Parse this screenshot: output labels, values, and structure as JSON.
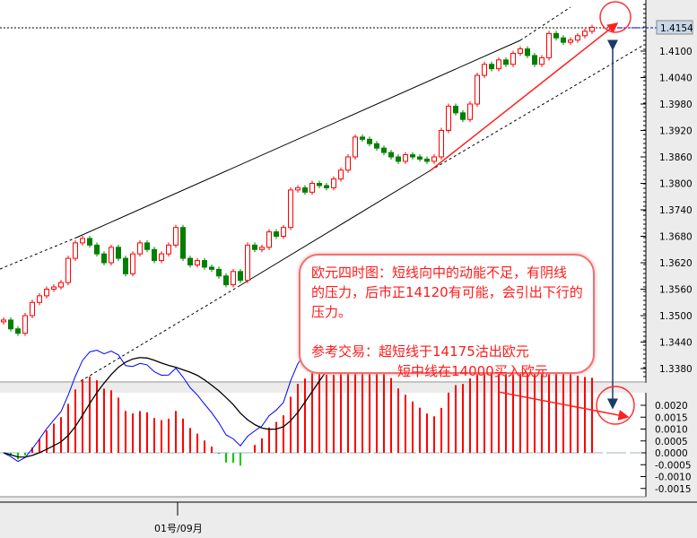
{
  "chart_data": {
    "type": "candlestick",
    "price_axis": {
      "ticks": [
        "1.4100",
        "1.4040",
        "1.3980",
        "1.3920",
        "1.3860",
        "1.3800",
        "1.3740",
        "1.3680",
        "1.3620",
        "1.3560",
        "1.3500",
        "1.3440",
        "1.3380"
      ],
      "ylim": [
        1.335,
        1.4225
      ]
    },
    "current_price": "1.4154",
    "closes": [
      1.349,
      1.347,
      1.346,
      1.35,
      1.353,
      1.3545,
      1.356,
      1.3565,
      1.3575,
      1.363,
      1.3665,
      1.3675,
      1.366,
      1.364,
      1.362,
      1.3655,
      1.363,
      1.3595,
      1.364,
      1.3665,
      1.365,
      1.3625,
      1.364,
      1.366,
      1.37,
      1.363,
      1.3615,
      1.3625,
      1.361,
      1.3605,
      1.359,
      1.357,
      1.36,
      1.358,
      1.366,
      1.365,
      1.3655,
      1.369,
      1.368,
      1.37,
      1.3785,
      1.379,
      1.378,
      1.38,
      1.3795,
      1.379,
      1.381,
      1.383,
      1.386,
      1.3905,
      1.39,
      1.389,
      1.388,
      1.387,
      1.386,
      1.385,
      1.3865,
      1.386,
      1.3855,
      1.385,
      1.386,
      1.392,
      1.3975,
      1.396,
      1.3945,
      1.398,
      1.4045,
      1.407,
      1.406,
      1.408,
      1.407,
      1.4095,
      1.4105,
      1.409,
      1.407,
      1.4085,
      1.414,
      1.413,
      1.412,
      1.4125,
      1.4135,
      1.4145,
      1.4154
    ],
    "up_color": "#ff0000",
    "down_color": "#008000",
    "macd_axis": {
      "ticks": [
        "0.0020",
        "0.0015",
        "0.0010",
        "0.0005",
        "0.0000",
        "-0.0005",
        "-0.0010",
        "-0.0015"
      ],
      "ylim": [
        -0.0017,
        0.0027
      ]
    },
    "macd_colors": {
      "positive": "#ff0000",
      "negative": "#00cc00",
      "main": "#0000ff",
      "signal": "#000000"
    },
    "time_axis": {
      "labels": [
        "01号/09月"
      ]
    },
    "annotation": {
      "lines": [
        "欧元四时图：短线向中的动能不足，有阴线",
        "的压力，后市正14120有可能，会引出下行的",
        "压力。"
      ],
      "trade_title": "参考交易：",
      "trade_1": "超短线于14175沽出欧元",
      "trade_2": "短中线在14000买入欧元"
    }
  }
}
